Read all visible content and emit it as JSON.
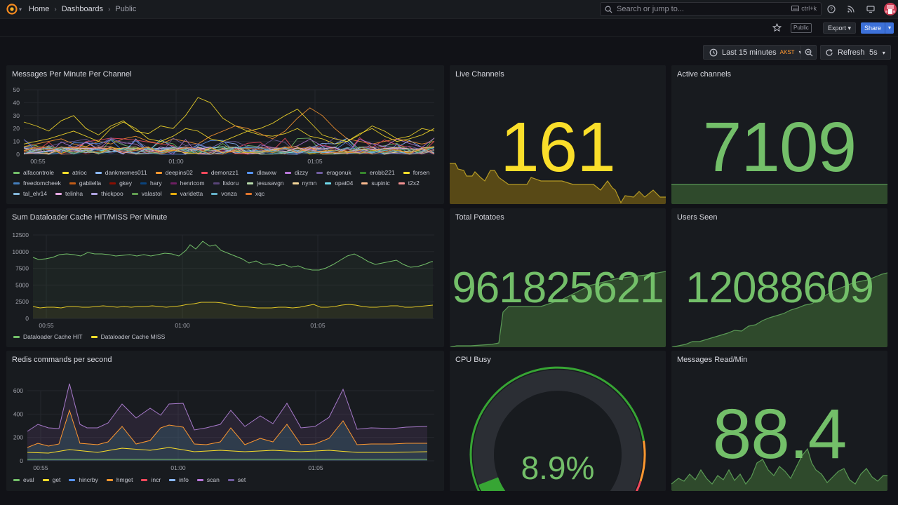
{
  "breadcrumb": {
    "home": "Home",
    "dashboards": "Dashboards",
    "current": "Public"
  },
  "search": {
    "placeholder": "Search or jump to...",
    "shortcut": "ctrl+k"
  },
  "toolbar": {
    "public_label": "Public",
    "export_label": "Export",
    "share_label": "Share"
  },
  "time": {
    "range": "Last 15 minutes",
    "timezone": "AKST",
    "refresh_label": "Refresh",
    "interval": "5s"
  },
  "colors": {
    "green": "#73bf69",
    "yellow": "#fade2a",
    "blue": "#5794f2",
    "orange": "#ff9830",
    "purple": "#b877d9",
    "red": "#f2495c",
    "bg": "#181b1f"
  },
  "panels": {
    "messages": {
      "title": "Messages Per Minute Per Channel",
      "yticks": [
        "50",
        "40",
        "30",
        "20",
        "10",
        "0"
      ],
      "xticks": [
        "00:55",
        "01:00",
        "01:05"
      ],
      "legend": [
        {
          "name": "alfacontrole",
          "color": "#73bf69"
        },
        {
          "name": "atrioc",
          "color": "#fade2a"
        },
        {
          "name": "dankmemes011",
          "color": "#8ab8ff"
        },
        {
          "name": "deepins02",
          "color": "#ff9830"
        },
        {
          "name": "demonzz1",
          "color": "#f2495c"
        },
        {
          "name": "dlawxw",
          "color": "#5794f2"
        },
        {
          "name": "dizzy",
          "color": "#b877d9"
        },
        {
          "name": "eragonuk",
          "color": "#705da0"
        },
        {
          "name": "erobb221",
          "color": "#37872d"
        },
        {
          "name": "forsen",
          "color": "#fade2a"
        },
        {
          "name": "freedomcheek",
          "color": "#447ebc"
        },
        {
          "name": "gabiiella",
          "color": "#c15c17"
        },
        {
          "name": "gkey",
          "color": "#890f02"
        },
        {
          "name": "hary",
          "color": "#0a437c"
        },
        {
          "name": "henricom",
          "color": "#6d1f62"
        },
        {
          "name": "ltsloru",
          "color": "#584477"
        },
        {
          "name": "jesusavgn",
          "color": "#b7dbab"
        },
        {
          "name": "nymn",
          "color": "#f4d598"
        },
        {
          "name": "opat04",
          "color": "#70dbed"
        },
        {
          "name": "supinic",
          "color": "#f9ba8f"
        },
        {
          "name": "t2x2",
          "color": "#f29191"
        },
        {
          "name": "tal_elv14",
          "color": "#82b5d8"
        },
        {
          "name": "telinha",
          "color": "#e5a8e2"
        },
        {
          "name": "thickpoo",
          "color": "#aea2e0"
        },
        {
          "name": "valastol",
          "color": "#629e51"
        },
        {
          "name": "varidetta",
          "color": "#e5ac0e"
        },
        {
          "name": "vonza",
          "color": "#64b0c8"
        },
        {
          "name": "xqc",
          "color": "#e0752d"
        }
      ]
    },
    "live": {
      "title": "Live Channels",
      "value": "161"
    },
    "active": {
      "title": "Active channels",
      "value": "7109"
    },
    "dataloader": {
      "title": "Sum Dataloader Cache HIT/MISS Per Minute",
      "yticks": [
        "12500",
        "10000",
        "7500",
        "5000",
        "2500",
        "0"
      ],
      "xticks": [
        "00:55",
        "01:00",
        "01:05"
      ],
      "legend": [
        {
          "name": "Dataloader Cache HIT",
          "color": "#73bf69"
        },
        {
          "name": "Dataloader Cache MISS",
          "color": "#fade2a"
        }
      ]
    },
    "potatoes": {
      "title": "Total Potatoes",
      "value": "961825621"
    },
    "users": {
      "title": "Users Seen",
      "value": "12088609"
    },
    "redis": {
      "title": "Redis commands per second",
      "yticks": [
        "600",
        "400",
        "200",
        "0"
      ],
      "xticks": [
        "00:55",
        "01:00",
        "01:05"
      ],
      "legend": [
        {
          "name": "eval",
          "color": "#73bf69"
        },
        {
          "name": "get",
          "color": "#fade2a"
        },
        {
          "name": "hincrby",
          "color": "#5794f2"
        },
        {
          "name": "hmget",
          "color": "#ff9830"
        },
        {
          "name": "incr",
          "color": "#f2495c"
        },
        {
          "name": "info",
          "color": "#8ab8ff"
        },
        {
          "name": "scan",
          "color": "#b877d9"
        },
        {
          "name": "set",
          "color": "#705da0"
        }
      ]
    },
    "cpu": {
      "title": "CPU Busy",
      "value": "8.9%",
      "percent": 8.9
    },
    "readmin": {
      "title": "Messages Read/Min",
      "value": "88.4"
    }
  }
}
